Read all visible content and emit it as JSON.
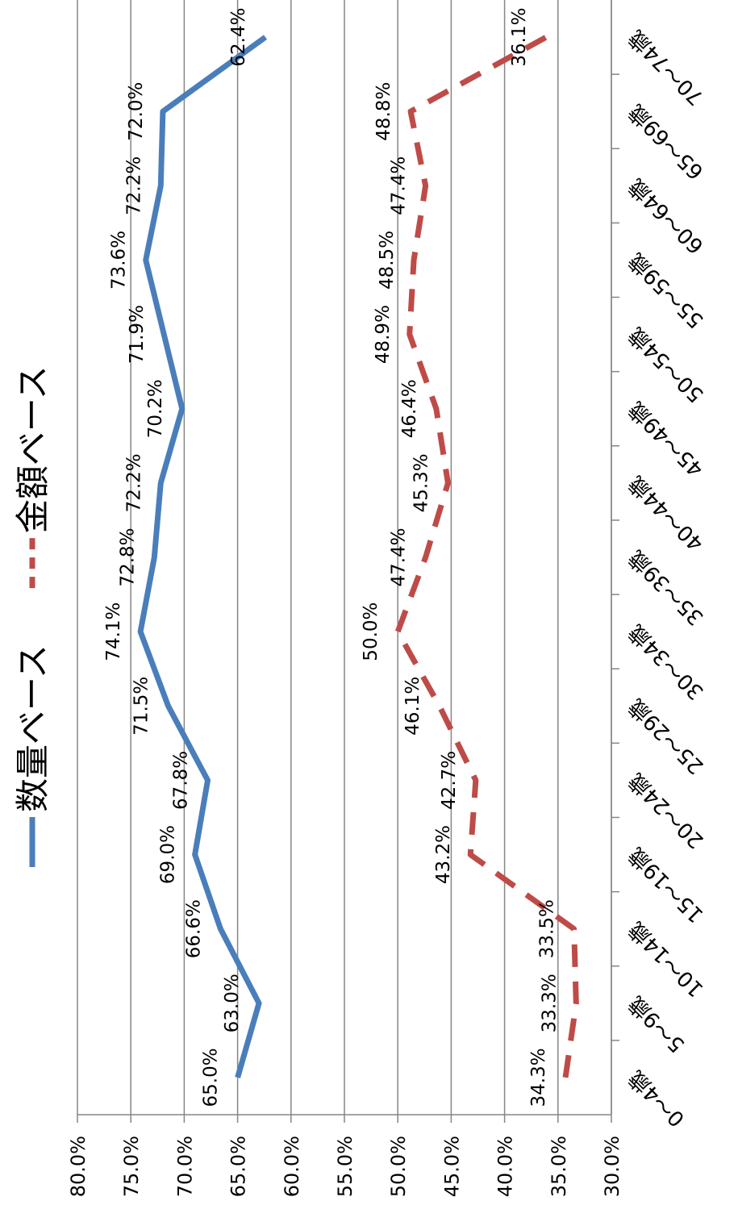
{
  "chart_data": {
    "type": "line",
    "categories": [
      "0～4歳",
      "5～9歳",
      "10～14歳",
      "15～19歳",
      "20～24歳",
      "25～29歳",
      "30～34歳",
      "35～39歳",
      "40～44歳",
      "45～49歳",
      "50～54歳",
      "55～59歳",
      "60～64歳",
      "65～69歳",
      "70～74歳"
    ],
    "series": [
      {
        "name": "数量ベース",
        "color": "#4a7ebb",
        "dashed": false,
        "values": [
          65.0,
          63.0,
          66.6,
          69.0,
          67.8,
          71.5,
          74.1,
          72.8,
          72.2,
          70.2,
          71.9,
          73.6,
          72.2,
          72.0,
          62.4
        ],
        "value_labels": [
          "65.0%",
          "63.0%",
          "66.6%",
          "69.0%",
          "67.8%",
          "71.5%",
          "74.1%",
          "72.8%",
          "72.2%",
          "70.2%",
          "71.9%",
          "73.6%",
          "72.2%",
          "72.0%",
          "62.4%"
        ]
      },
      {
        "name": "金額ベース",
        "color": "#be4b48",
        "dashed": true,
        "values": [
          34.3,
          33.3,
          33.5,
          43.2,
          42.7,
          46.1,
          50.0,
          47.4,
          45.3,
          46.4,
          48.9,
          48.5,
          47.4,
          48.8,
          36.1
        ],
        "value_labels": [
          "34.3%",
          "33.3%",
          "33.5%",
          "43.2%",
          "42.7%",
          "46.1%",
          "50.0%",
          "47.4%",
          "45.3%",
          "46.4%",
          "48.9%",
          "48.5%",
          "47.4%",
          "48.8%",
          "36.1%"
        ]
      }
    ],
    "ylim": [
      30,
      80
    ],
    "yticks": [
      {
        "value": 30,
        "label": "30.0%"
      },
      {
        "value": 35,
        "label": "35.0%"
      },
      {
        "value": 40,
        "label": "40.0%"
      },
      {
        "value": 45,
        "label": "45.0%"
      },
      {
        "value": 50,
        "label": "50.0%"
      },
      {
        "value": 55,
        "label": "55.0%"
      },
      {
        "value": 60,
        "label": "60.0%"
      },
      {
        "value": 65,
        "label": "65.0%"
      },
      {
        "value": 70,
        "label": "70.0%"
      },
      {
        "value": 75,
        "label": "75.0%"
      },
      {
        "value": 80,
        "label": "80.0%"
      }
    ],
    "grid": true,
    "legend": "top"
  }
}
